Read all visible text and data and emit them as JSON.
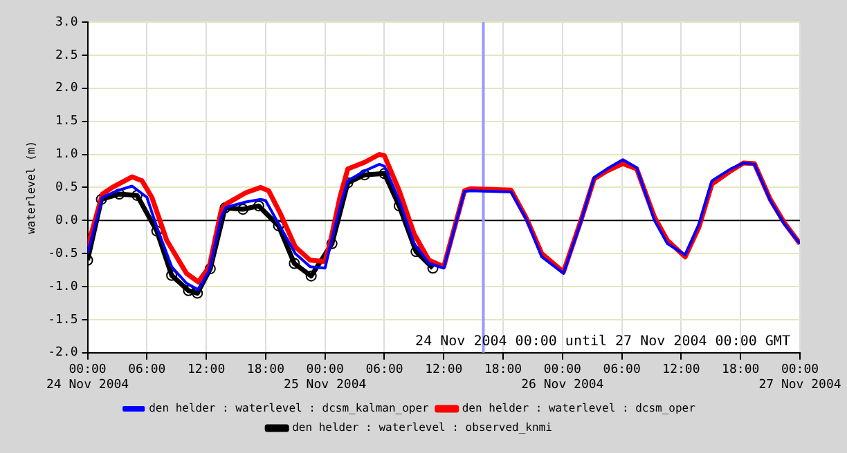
{
  "chart_data": {
    "type": "line",
    "ylabel": "waterlevel (m)",
    "xlim": [
      "2004-11-24T00:00",
      "2004-11-27T00:00"
    ],
    "xticks": [
      {
        "value": "2004-11-24T00:00",
        "label": "00:00\n24 Nov 2004"
      },
      {
        "value": "2004-11-24T06:00",
        "label": "06:00"
      },
      {
        "value": "2004-11-24T12:00",
        "label": "12:00"
      },
      {
        "value": "2004-11-24T18:00",
        "label": "18:00"
      },
      {
        "value": "2004-11-25T00:00",
        "label": "00:00\n25 Nov 2004"
      },
      {
        "value": "2004-11-25T06:00",
        "label": "06:00"
      },
      {
        "value": "2004-11-25T12:00",
        "label": "12:00"
      },
      {
        "value": "2004-11-25T18:00",
        "label": "18:00"
      },
      {
        "value": "2004-11-26T00:00",
        "label": "00:00\n26 Nov 2004"
      },
      {
        "value": "2004-11-26T06:00",
        "label": "06:00"
      },
      {
        "value": "2004-11-26T12:00",
        "label": "12:00"
      },
      {
        "value": "2004-11-26T18:00",
        "label": "18:00"
      },
      {
        "value": "2004-11-27T00:00",
        "label": "00:00\n27 Nov 2004"
      }
    ],
    "ylim": [
      -2,
      3
    ],
    "yticks": [
      {
        "value": -2,
        "label": "-2.0"
      },
      {
        "value": -1.5,
        "label": "-1.5"
      },
      {
        "value": -1,
        "label": "-1.0"
      },
      {
        "value": -0.5,
        "label": "-0.5"
      },
      {
        "value": 0,
        "label": "0.0"
      },
      {
        "value": 0.5,
        "label": "0.5"
      },
      {
        "value": 1,
        "label": "1.0"
      },
      {
        "value": 1.5,
        "label": "1.5"
      },
      {
        "value": 2,
        "label": "2.0"
      },
      {
        "value": 2.5,
        "label": "2.5"
      },
      {
        "value": 3,
        "label": "3.0"
      }
    ],
    "grid": true,
    "legend": "bottom",
    "line_style": "solid",
    "ref_lines": [
      {
        "axis": "y",
        "value": 0,
        "color": "#000000"
      },
      {
        "axis": "x",
        "value": "2004-11-25T16:00",
        "color": "#9999ff"
      }
    ],
    "annotations": [
      "24 Nov 2004 00:00 until 27 Nov 2004 00:00 GMT"
    ],
    "series": [
      {
        "name": "den helder : waterlevel : dcsm_kalman_oper",
        "color": "#0000ff",
        "marker": "none",
        "x": [
          "2004-11-24T00:00",
          "2004-11-24T01:30",
          "2004-11-24T03:00",
          "2004-11-24T04:30",
          "2004-11-24T06:00",
          "2004-11-24T07:00",
          "2004-11-24T08:30",
          "2004-11-24T10:00",
          "2004-11-24T11:12",
          "2004-11-24T12:18",
          "2004-11-24T13:30",
          "2004-11-24T14:00",
          "2004-11-24T16:00",
          "2004-11-24T17:30",
          "2004-11-24T18:00",
          "2004-11-24T19:18",
          "2004-11-24T21:00",
          "2004-11-24T22:30",
          "2004-11-25T00:00",
          "2004-11-25T00:30",
          "2004-11-25T01:30",
          "2004-11-25T02:18",
          "2004-11-25T04:00",
          "2004-11-25T05:30",
          "2004-11-25T06:00",
          "2004-11-25T07:30",
          "2004-11-25T09:00",
          "2004-11-25T10:30",
          "2004-11-25T12:00",
          "2004-11-25T14:06",
          "2004-11-25T14:42",
          "2004-11-25T18:48",
          "2004-11-25T20:24",
          "2004-11-25T21:54",
          "2004-11-26T00:06",
          "2004-11-26T01:48",
          "2004-11-26T03:12",
          "2004-11-26T04:30",
          "2004-11-26T06:06",
          "2004-11-26T07:30",
          "2004-11-26T09:18",
          "2004-11-26T10:36",
          "2004-11-26T12:24",
          "2004-11-26T13:48",
          "2004-11-26T15:06",
          "2004-11-26T17:00",
          "2004-11-26T18:18",
          "2004-11-26T19:24",
          "2004-11-26T21:00",
          "2004-11-26T22:24",
          "2004-11-27T00:00"
        ],
        "values": [
          -0.5,
          0.35,
          0.45,
          0.52,
          0.35,
          -0.1,
          -0.7,
          -0.95,
          -1.05,
          -0.75,
          0.05,
          0.2,
          0.28,
          0.32,
          0.3,
          -0.05,
          -0.5,
          -0.7,
          -0.72,
          -0.4,
          0.2,
          0.6,
          0.75,
          0.85,
          0.82,
          0.3,
          -0.35,
          -0.65,
          -0.72,
          0.44,
          0.45,
          0.43,
          0,
          -0.55,
          -0.8,
          -0.05,
          0.65,
          0.78,
          0.92,
          0.8,
          0,
          -0.35,
          -0.52,
          -0.05,
          0.6,
          0.78,
          0.87,
          0.85,
          0.3,
          -0.05,
          -0.35
        ]
      },
      {
        "name": "den helder : waterlevel : dcsm_oper",
        "color": "#ff0000",
        "marker": "none",
        "x": [
          "2004-11-24T00:00",
          "2004-11-24T01:30",
          "2004-11-24T02:30",
          "2004-11-24T04:30",
          "2004-11-24T05:30",
          "2004-11-24T06:30",
          "2004-11-24T08:00",
          "2004-11-24T10:00",
          "2004-11-24T11:12",
          "2004-11-24T12:18",
          "2004-11-24T13:30",
          "2004-11-24T14:00",
          "2004-11-24T16:00",
          "2004-11-24T17:30",
          "2004-11-24T18:18",
          "2004-11-24T19:30",
          "2004-11-24T21:00",
          "2004-11-24T22:30",
          "2004-11-25T00:00",
          "2004-11-25T00:30",
          "2004-11-25T01:30",
          "2004-11-25T02:18",
          "2004-11-25T04:00",
          "2004-11-25T05:30",
          "2004-11-25T06:00",
          "2004-11-25T07:30",
          "2004-11-25T09:00",
          "2004-11-25T10:30",
          "2004-11-25T12:00",
          "2004-11-25T14:06",
          "2004-11-25T14:42",
          "2004-11-25T18:48",
          "2004-11-25T20:24",
          "2004-11-25T21:54",
          "2004-11-26T00:06",
          "2004-11-26T01:48",
          "2004-11-26T03:12",
          "2004-11-26T04:30",
          "2004-11-26T06:06",
          "2004-11-26T07:30",
          "2004-11-26T09:18",
          "2004-11-26T10:36",
          "2004-11-26T12:24",
          "2004-11-26T13:48",
          "2004-11-26T15:06",
          "2004-11-26T17:00",
          "2004-11-26T18:18",
          "2004-11-26T19:24",
          "2004-11-26T21:00",
          "2004-11-26T22:24",
          "2004-11-27T00:00"
        ],
        "values": [
          -0.4,
          0.4,
          0.5,
          0.66,
          0.6,
          0.35,
          -0.3,
          -0.8,
          -0.93,
          -0.7,
          0.15,
          0.25,
          0.42,
          0.5,
          0.45,
          0.1,
          -0.4,
          -0.6,
          -0.62,
          -0.35,
          0.35,
          0.78,
          0.88,
          1,
          0.98,
          0.45,
          -0.2,
          -0.6,
          -0.7,
          0.45,
          0.48,
          0.46,
          0.02,
          -0.5,
          -0.78,
          -0.03,
          0.63,
          0.75,
          0.86,
          0.78,
          0.05,
          -0.3,
          -0.55,
          -0.1,
          0.55,
          0.75,
          0.87,
          0.86,
          0.32,
          -0.03,
          -0.35
        ]
      },
      {
        "name": "den helder : waterlevel : observed_knmi",
        "color": "#000000",
        "marker": "circle",
        "x": [
          "2004-11-24T00:00",
          "2004-11-24T01:24",
          "2004-11-24T03:12",
          "2004-11-24T05:00",
          "2004-11-24T07:00",
          "2004-11-24T08:30",
          "2004-11-24T10:12",
          "2004-11-24T11:06",
          "2004-11-24T12:24",
          "2004-11-24T13:54",
          "2004-11-24T15:42",
          "2004-11-24T17:18",
          "2004-11-24T19:18",
          "2004-11-24T20:54",
          "2004-11-24T22:36",
          "2004-11-25T00:42",
          "2004-11-25T02:18",
          "2004-11-25T04:00",
          "2004-11-25T06:00",
          "2004-11-25T07:30",
          "2004-11-25T09:12",
          "2004-11-25T10:54"
        ],
        "values": [
          -0.6,
          0.32,
          0.4,
          0.38,
          -0.16,
          -0.83,
          -1.06,
          -1.1,
          -0.73,
          0.19,
          0.17,
          0.22,
          -0.08,
          -0.65,
          -0.84,
          -0.35,
          0.57,
          0.69,
          0.71,
          0.22,
          -0.47,
          -0.72
        ]
      }
    ]
  }
}
